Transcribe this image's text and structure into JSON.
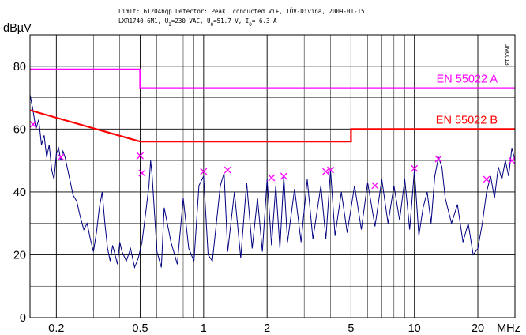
{
  "header": {
    "line1": "Limit: 61204bqp  Detector: Peak, conducted Vi+, TÜV-Divina, 2009-01-15",
    "line2_pre": "LXR1740-6M1, U",
    "line2_sub1": "I",
    "line2_mid1": "=230 VAC, U",
    "line2_sub2": "O",
    "line2_mid2": "=51.7 V, I",
    "line2_sub3": "O",
    "line2_post": "= 6.3 A"
  },
  "side_label": "JM0013",
  "chart_data": {
    "type": "line",
    "title": "",
    "ylabel": "dBµV",
    "xlabel": "MHz",
    "x_scale": "log",
    "xlim": [
      0.15,
      30
    ],
    "ylim": [
      0,
      90
    ],
    "grid": true,
    "x_ticks": [
      {
        "value": 0.2,
        "label": "0.2"
      },
      {
        "value": 0.5,
        "label": "0.5"
      },
      {
        "value": 1,
        "label": "1"
      },
      {
        "value": 2,
        "label": "2"
      },
      {
        "value": 5,
        "label": "5"
      },
      {
        "value": 10,
        "label": "10"
      },
      {
        "value": 20,
        "label": "20"
      }
    ],
    "y_ticks": [
      {
        "value": 0,
        "label": "0"
      },
      {
        "value": 20,
        "label": "20"
      },
      {
        "value": 40,
        "label": "40"
      },
      {
        "value": 60,
        "label": "60"
      },
      {
        "value": 80,
        "label": "80"
      }
    ],
    "limits": [
      {
        "name": "EN 55022 A",
        "color": "#ff00ff",
        "points": [
          [
            0.15,
            79
          ],
          [
            0.5,
            79
          ],
          [
            0.5,
            73
          ],
          [
            30,
            73
          ]
        ]
      },
      {
        "name": "EN 55022 B",
        "color": "#ff0000",
        "points": [
          [
            0.15,
            66
          ],
          [
            0.5,
            56
          ],
          [
            5,
            56
          ],
          [
            5,
            60
          ],
          [
            30,
            60
          ]
        ]
      }
    ],
    "series": [
      {
        "color": "#000080",
        "points": [
          [
            0.15,
            71
          ],
          [
            0.155,
            66
          ],
          [
            0.16,
            60
          ],
          [
            0.165,
            63
          ],
          [
            0.17,
            55
          ],
          [
            0.175,
            58
          ],
          [
            0.18,
            51
          ],
          [
            0.185,
            55
          ],
          [
            0.19,
            47
          ],
          [
            0.195,
            44
          ],
          [
            0.2,
            52
          ],
          [
            0.205,
            54
          ],
          [
            0.21,
            50
          ],
          [
            0.215,
            53
          ],
          [
            0.22,
            51
          ],
          [
            0.23,
            45
          ],
          [
            0.24,
            39
          ],
          [
            0.25,
            37
          ],
          [
            0.26,
            32
          ],
          [
            0.27,
            28
          ],
          [
            0.28,
            30
          ],
          [
            0.29,
            25
          ],
          [
            0.3,
            21
          ],
          [
            0.31,
            27
          ],
          [
            0.32,
            35
          ],
          [
            0.33,
            40
          ],
          [
            0.34,
            30
          ],
          [
            0.35,
            22
          ],
          [
            0.36,
            18
          ],
          [
            0.37,
            23
          ],
          [
            0.38,
            20
          ],
          [
            0.39,
            17
          ],
          [
            0.4,
            24
          ],
          [
            0.41,
            21
          ],
          [
            0.43,
            18
          ],
          [
            0.45,
            22
          ],
          [
            0.47,
            16
          ],
          [
            0.49,
            19
          ],
          [
            0.51,
            24
          ],
          [
            0.53,
            33
          ],
          [
            0.55,
            42
          ],
          [
            0.56,
            50
          ],
          [
            0.57,
            45
          ],
          [
            0.6,
            21
          ],
          [
            0.63,
            16
          ],
          [
            0.65,
            35
          ],
          [
            0.7,
            24
          ],
          [
            0.75,
            17
          ],
          [
            0.8,
            38
          ],
          [
            0.85,
            22
          ],
          [
            0.9,
            18
          ],
          [
            0.95,
            42
          ],
          [
            1.0,
            45
          ],
          [
            1.05,
            20
          ],
          [
            1.1,
            18
          ],
          [
            1.2,
            42
          ],
          [
            1.25,
            46
          ],
          [
            1.3,
            21
          ],
          [
            1.4,
            40
          ],
          [
            1.5,
            19
          ],
          [
            1.6,
            43
          ],
          [
            1.7,
            22
          ],
          [
            1.8,
            38
          ],
          [
            1.9,
            21
          ],
          [
            2.0,
            44
          ],
          [
            2.1,
            23
          ],
          [
            2.2,
            42
          ],
          [
            2.3,
            22
          ],
          [
            2.4,
            45
          ],
          [
            2.5,
            24
          ],
          [
            2.7,
            41
          ],
          [
            2.9,
            24
          ],
          [
            3.1,
            44
          ],
          [
            3.3,
            25
          ],
          [
            3.6,
            42
          ],
          [
            3.8,
            25
          ],
          [
            4.0,
            47
          ],
          [
            4.2,
            26
          ],
          [
            4.5,
            40
          ],
          [
            4.8,
            27
          ],
          [
            5.2,
            42
          ],
          [
            5.6,
            28
          ],
          [
            6.0,
            43
          ],
          [
            6.5,
            29
          ],
          [
            7.0,
            44
          ],
          [
            7.5,
            30
          ],
          [
            8.0,
            42
          ],
          [
            8.5,
            31
          ],
          [
            9.0,
            44
          ],
          [
            9.5,
            28
          ],
          [
            10.0,
            47
          ],
          [
            10.5,
            26
          ],
          [
            11.0,
            35
          ],
          [
            11.5,
            40
          ],
          [
            12.0,
            30
          ],
          [
            12.5,
            45
          ],
          [
            13.0,
            51
          ],
          [
            13.5,
            48
          ],
          [
            14.0,
            38
          ],
          [
            15.0,
            30
          ],
          [
            16.0,
            36
          ],
          [
            17.0,
            24
          ],
          [
            18.0,
            30
          ],
          [
            19.0,
            20
          ],
          [
            20.0,
            22
          ],
          [
            21.0,
            30
          ],
          [
            22.0,
            40
          ],
          [
            23.0,
            45
          ],
          [
            24.0,
            38
          ],
          [
            25.0,
            48
          ],
          [
            26.0,
            44
          ],
          [
            27.0,
            50
          ],
          [
            28.0,
            45
          ],
          [
            29.0,
            54
          ],
          [
            30.0,
            50
          ]
        ]
      }
    ],
    "peak_markers": [
      [
        0.155,
        61.5
      ],
      [
        0.21,
        51
      ],
      [
        0.5,
        51.5
      ],
      [
        0.51,
        46
      ],
      [
        1.0,
        46.5
      ],
      [
        1.3,
        47
      ],
      [
        2.1,
        44.5
      ],
      [
        2.4,
        45
      ],
      [
        3.8,
        46.5
      ],
      [
        4.0,
        47
      ],
      [
        6.5,
        42
      ],
      [
        10.0,
        47.5
      ],
      [
        13.0,
        50.5
      ],
      [
        22.0,
        44
      ],
      [
        29.0,
        50
      ]
    ]
  }
}
